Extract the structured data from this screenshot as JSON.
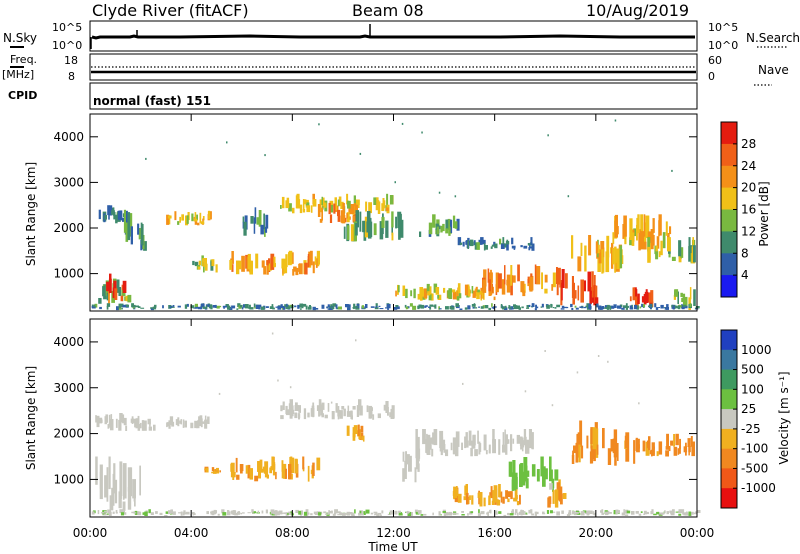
{
  "header": {
    "station": "Clyde River (fitACF)",
    "beam": "Beam 08",
    "date": "10/Aug/2019"
  },
  "strip": {
    "nsky_label": "N.Sky",
    "nsky_ticks": [
      "10^5",
      "10^0"
    ],
    "nsearch_label": "N.Search",
    "nsearch_ticks": [
      "10^5",
      "10^0"
    ],
    "freq_label": "Freq.",
    "freq_unit": "[MHz]",
    "freq_ticks": [
      "18",
      "8"
    ],
    "nave_label": "Nave",
    "nave_ticks": [
      "60",
      "0"
    ],
    "cpid_label": "CPID",
    "cpid_value": "normal (fast) 151"
  },
  "x_axis": {
    "label": "Time UT",
    "ticks": [
      "00:00",
      "04:00",
      "08:00",
      "12:00",
      "16:00",
      "20:00",
      "00:00"
    ]
  },
  "y_axis": {
    "label": "Slant Range [km]",
    "ticks": [
      "1000",
      "2000",
      "3000",
      "4000"
    ]
  },
  "power_scale": {
    "title": "Power [dB]",
    "ticks": [
      "4",
      "8",
      "12",
      "16",
      "20",
      "24",
      "28"
    ],
    "colors": [
      "#1a1af0",
      "#2f5fa8",
      "#3f8a6c",
      "#79b840",
      "#f0c018",
      "#f49018",
      "#f06018",
      "#e41c10"
    ]
  },
  "velocity_scale": {
    "title": "Velocity [m s⁻¹]",
    "ticks": [
      "1000",
      "500",
      "100",
      "25",
      "-25",
      "-100",
      "-500",
      "-1000"
    ],
    "colors": [
      "#2040c0",
      "#3a78a0",
      "#3e9a60",
      "#6cc040",
      "#c8c8c0",
      "#f0b020",
      "#f08820",
      "#f05818",
      "#e81010"
    ]
  },
  "chart_data": [
    {
      "type": "heatmap",
      "title": "Power [dB]",
      "xlabel": "Time UT",
      "ylabel": "Slant Range [km]",
      "xlim": [
        0,
        24
      ],
      "ylim": [
        180,
        4500
      ],
      "colorbar_range": [
        0,
        30
      ],
      "regions": [
        {
          "t": [
            0.2,
            1.5
          ],
          "r": [
            2100,
            2500
          ],
          "v": 8
        },
        {
          "t": [
            0.2,
            1.5
          ],
          "r": [
            300,
            900
          ],
          "v": 12
        },
        {
          "t": [
            0.5,
            1.3
          ],
          "r": [
            300,
            1000
          ],
          "v": 26
        },
        {
          "t": [
            1.3,
            2.2
          ],
          "r": [
            1400,
            2400
          ],
          "v": 10
        },
        {
          "t": [
            3.0,
            4.7
          ],
          "r": [
            2050,
            2400
          ],
          "v": 18
        },
        {
          "t": [
            4.0,
            5.0
          ],
          "r": [
            1000,
            1400
          ],
          "v": 14
        },
        {
          "t": [
            5.5,
            9.0
          ],
          "r": [
            950,
            1500
          ],
          "v": 20
        },
        {
          "t": [
            6.0,
            7.0
          ],
          "r": [
            1800,
            2500
          ],
          "v": 10
        },
        {
          "t": [
            7.5,
            12.0
          ],
          "r": [
            2300,
            2750
          ],
          "v": 16
        },
        {
          "t": [
            9.0,
            10.5
          ],
          "r": [
            2100,
            2550
          ],
          "v": 22
        },
        {
          "t": [
            10.0,
            12.3
          ],
          "r": [
            1700,
            2400
          ],
          "v": 12
        },
        {
          "t": [
            13.0,
            14.5
          ],
          "r": [
            1800,
            2300
          ],
          "v": 10
        },
        {
          "t": [
            14.5,
            17.5
          ],
          "r": [
            1500,
            1800
          ],
          "v": 8
        },
        {
          "t": [
            12.0,
            16.0
          ],
          "r": [
            400,
            800
          ],
          "v": 16
        },
        {
          "t": [
            15.5,
            18.5
          ],
          "r": [
            500,
            1200
          ],
          "v": 22
        },
        {
          "t": [
            18.5,
            20.0
          ],
          "r": [
            300,
            1100
          ],
          "v": 26
        },
        {
          "t": [
            19.0,
            21.0
          ],
          "r": [
            1000,
            1900
          ],
          "v": 18
        },
        {
          "t": [
            20.5,
            23.0
          ],
          "r": [
            1500,
            2300
          ],
          "v": 18
        },
        {
          "t": [
            22.0,
            23.9
          ],
          "r": [
            1200,
            1800
          ],
          "v": 14
        },
        {
          "t": [
            21.3,
            22.3
          ],
          "r": [
            200,
            700
          ],
          "v": 26
        },
        {
          "t": [
            23.0,
            23.9
          ],
          "r": [
            200,
            800
          ],
          "v": 14
        },
        {
          "t": [
            0.0,
            24.0
          ],
          "r": [
            200,
            350
          ],
          "v": 8
        }
      ]
    },
    {
      "type": "heatmap",
      "title": "Velocity [m s⁻¹]",
      "xlabel": "Time UT",
      "ylabel": "Slant Range [km]",
      "xlim": [
        0,
        24
      ],
      "ylim": [
        180,
        4500
      ],
      "colorbar_range": [
        -1000,
        1000
      ],
      "regions": [
        {
          "t": [
            0.2,
            2.5
          ],
          "r": [
            2050,
            2450
          ],
          "v": 0
        },
        {
          "t": [
            0.2,
            2.0
          ],
          "r": [
            300,
            1500
          ],
          "v": 0
        },
        {
          "t": [
            3.0,
            4.7
          ],
          "r": [
            2100,
            2400
          ],
          "v": 0
        },
        {
          "t": [
            4.5,
            5.2
          ],
          "r": [
            1100,
            1300
          ],
          "v": -300
        },
        {
          "t": [
            5.5,
            9.0
          ],
          "r": [
            950,
            1500
          ],
          "v": -300
        },
        {
          "t": [
            7.5,
            12.0
          ],
          "r": [
            2300,
            2750
          ],
          "v": 0
        },
        {
          "t": [
            10.0,
            10.8
          ],
          "r": [
            1800,
            2300
          ],
          "v": -300
        },
        {
          "t": [
            12.0,
            13.0
          ],
          "r": [
            900,
            2100
          ],
          "v": 0
        },
        {
          "t": [
            13.0,
            17.5
          ],
          "r": [
            1500,
            2100
          ],
          "v": 0
        },
        {
          "t": [
            14.0,
            17.0
          ],
          "r": [
            400,
            900
          ],
          "v": -300
        },
        {
          "t": [
            16.5,
            18.5
          ],
          "r": [
            700,
            1500
          ],
          "v": 200
        },
        {
          "t": [
            18.0,
            18.8
          ],
          "r": [
            300,
            1000
          ],
          "v": -300
        },
        {
          "t": [
            19.0,
            21.5
          ],
          "r": [
            1300,
            2300
          ],
          "v": -400
        },
        {
          "t": [
            21.5,
            23.9
          ],
          "r": [
            1500,
            2000
          ],
          "v": -400
        },
        {
          "t": [
            0.0,
            24.0
          ],
          "r": [
            200,
            350
          ],
          "v": 50
        }
      ]
    }
  ]
}
